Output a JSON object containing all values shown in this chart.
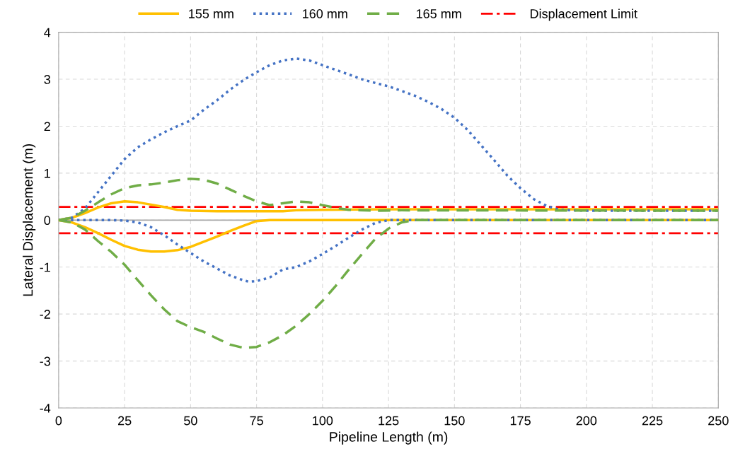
{
  "chart_data": {
    "type": "line",
    "xlabel": "Pipeline Length (m)",
    "ylabel": "Lateral Displacement (m)",
    "xlim": [
      0,
      250
    ],
    "xticks": [
      0,
      25,
      50,
      75,
      100,
      125,
      150,
      175,
      200,
      225,
      250
    ],
    "ylim": [
      -4,
      4
    ],
    "yticks": [
      -4,
      -3,
      -2,
      -1,
      0,
      1,
      2,
      3,
      4
    ],
    "grid": true,
    "legend": "top",
    "series": [
      {
        "name": "155 mm",
        "color": "#ffc000",
        "line_style": "solid",
        "x": [
          0,
          5,
          10,
          15,
          20,
          25,
          30,
          35,
          40,
          45,
          50,
          60,
          75,
          85,
          90,
          100,
          125,
          250
        ],
        "values": [
          0,
          0.05,
          0.15,
          0.27,
          0.36,
          0.4,
          0.38,
          0.33,
          0.28,
          0.22,
          0.2,
          0.19,
          0.19,
          0.19,
          0.21,
          0.22,
          0.23,
          0.23
        ]
      },
      {
        "color": "#ffc000",
        "line_style": "solid",
        "x": [
          0,
          5,
          10,
          15,
          20,
          25,
          30,
          35,
          40,
          45,
          50,
          55,
          60,
          65,
          70,
          75,
          80,
          250
        ],
        "values": [
          0,
          -0.05,
          -0.15,
          -0.28,
          -0.42,
          -0.55,
          -0.63,
          -0.67,
          -0.67,
          -0.64,
          -0.57,
          -0.46,
          -0.35,
          -0.23,
          -0.12,
          -0.02,
          0,
          0
        ]
      },
      {
        "name": "160 mm",
        "color": "#4472c4",
        "line_style": "dotted",
        "x": [
          0,
          5,
          10,
          15,
          20,
          25,
          30,
          35,
          40,
          45,
          50,
          55,
          60,
          65,
          70,
          75,
          80,
          85,
          90,
          95,
          100,
          105,
          110,
          115,
          120,
          125,
          130,
          135,
          140,
          145,
          150,
          155,
          160,
          165,
          170,
          175,
          180,
          185,
          190,
          200,
          250
        ],
        "values": [
          0,
          0.05,
          0.25,
          0.6,
          0.95,
          1.3,
          1.55,
          1.72,
          1.87,
          2.0,
          2.12,
          2.35,
          2.55,
          2.78,
          2.98,
          3.15,
          3.3,
          3.4,
          3.44,
          3.4,
          3.3,
          3.2,
          3.1,
          3.0,
          2.92,
          2.85,
          2.75,
          2.65,
          2.52,
          2.37,
          2.18,
          1.92,
          1.6,
          1.28,
          0.95,
          0.68,
          0.45,
          0.3,
          0.22,
          0.2,
          0.2
        ]
      },
      {
        "color": "#4472c4",
        "line_style": "dotted",
        "x": [
          0,
          10,
          20,
          25,
          30,
          35,
          40,
          45,
          50,
          55,
          60,
          65,
          70,
          72,
          75,
          80,
          85,
          90,
          95,
          100,
          105,
          110,
          115,
          120,
          125,
          250
        ],
        "values": [
          0,
          0,
          0,
          -0.01,
          -0.05,
          -0.15,
          -0.32,
          -0.52,
          -0.7,
          -0.88,
          -1.03,
          -1.18,
          -1.28,
          -1.31,
          -1.3,
          -1.22,
          -1.05,
          -1.0,
          -0.88,
          -0.72,
          -0.55,
          -0.37,
          -0.2,
          -0.06,
          0,
          0
        ]
      },
      {
        "name": "165 mm",
        "color": "#70ad47",
        "line_style": "dashed",
        "x": [
          0,
          5,
          10,
          15,
          20,
          25,
          30,
          35,
          40,
          45,
          50,
          55,
          60,
          65,
          70,
          75,
          80,
          85,
          90,
          95,
          100,
          105,
          110,
          120,
          130,
          250
        ],
        "values": [
          0,
          0.05,
          0.2,
          0.38,
          0.55,
          0.68,
          0.74,
          0.76,
          0.8,
          0.85,
          0.88,
          0.86,
          0.78,
          0.65,
          0.52,
          0.4,
          0.32,
          0.36,
          0.4,
          0.38,
          0.32,
          0.26,
          0.22,
          0.2,
          0.21,
          0.2
        ]
      },
      {
        "color": "#70ad47",
        "line_style": "dashed",
        "x": [
          0,
          5,
          10,
          15,
          20,
          25,
          30,
          35,
          40,
          45,
          50,
          55,
          60,
          65,
          70,
          75,
          80,
          85,
          90,
          95,
          100,
          105,
          110,
          115,
          120,
          125,
          130,
          135,
          250
        ],
        "values": [
          0,
          -0.05,
          -0.2,
          -0.45,
          -0.68,
          -0.95,
          -1.28,
          -1.6,
          -1.9,
          -2.15,
          -2.28,
          -2.38,
          -2.52,
          -2.65,
          -2.72,
          -2.7,
          -2.6,
          -2.45,
          -2.25,
          -2.0,
          -1.72,
          -1.4,
          -1.05,
          -0.72,
          -0.4,
          -0.18,
          -0.05,
          0,
          0
        ]
      }
    ],
    "ref_lines": [
      {
        "axis": "y",
        "value": 0,
        "color": "#a6a6a6",
        "line_style": "solid"
      },
      {
        "axis": "y",
        "value": 0.28,
        "label": "Displacement Limit",
        "color": "#ff0000",
        "line_style": "dashdot"
      },
      {
        "axis": "y",
        "value": -0.28,
        "color": "#ff0000",
        "line_style": "dashdot"
      }
    ]
  }
}
